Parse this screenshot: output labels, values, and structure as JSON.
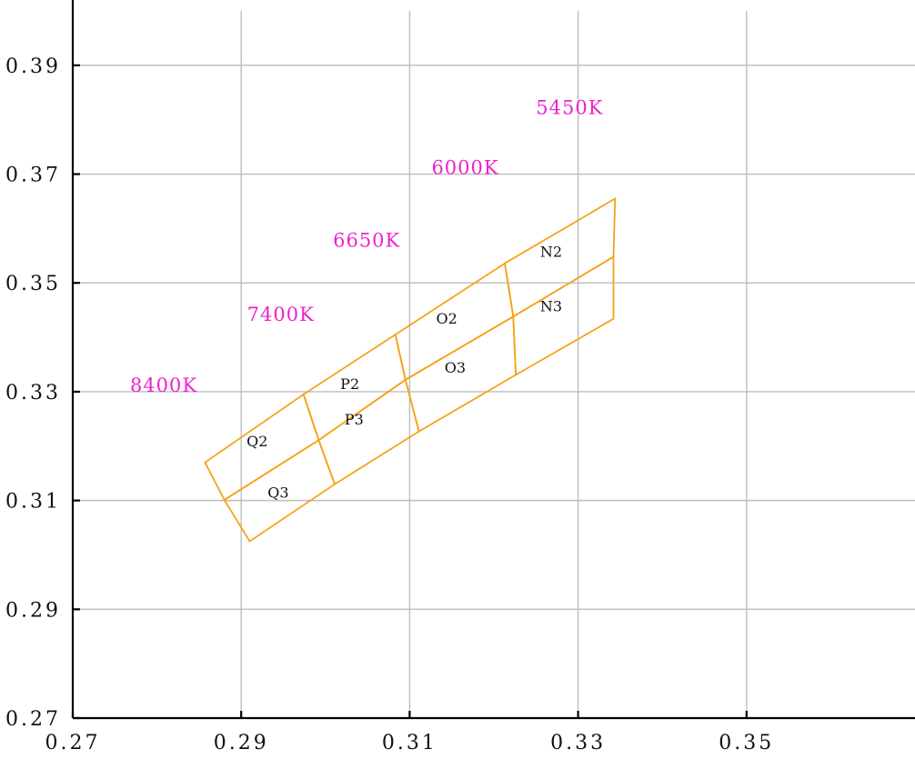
{
  "chart_data": {
    "type": "scatter",
    "title": "",
    "xlabel": "",
    "ylabel": "",
    "xlim": [
      0.27,
      0.37
    ],
    "ylim": [
      0.27,
      0.4
    ],
    "grid": true,
    "x_ticks": [
      "0.27",
      "0.29",
      "0.31",
      "0.33",
      "0.35"
    ],
    "x_tick_values": [
      0.27,
      0.29,
      0.31,
      0.33,
      0.35
    ],
    "y_ticks": [
      "0.27",
      "0.29",
      "0.31",
      "0.33",
      "0.35",
      "0.37",
      "0.39"
    ],
    "y_tick_values": [
      0.27,
      0.29,
      0.31,
      0.33,
      0.35,
      0.37,
      0.39
    ],
    "cct_labels": [
      {
        "text": "5450K",
        "x": 0.329,
        "y": 0.381
      },
      {
        "text": "6000K",
        "x": 0.3166,
        "y": 0.37
      },
      {
        "text": "6650K",
        "x": 0.3049,
        "y": 0.3566
      },
      {
        "text": "7400K",
        "x": 0.2947,
        "y": 0.343
      },
      {
        "text": "8400K",
        "x": 0.2808,
        "y": 0.33
      }
    ],
    "bins": [
      {
        "name": "N2",
        "label_pos": [
          0.3268,
          0.3548
        ],
        "corners": [
          [
            0.3213,
            0.3536
          ],
          [
            0.3344,
            0.3655
          ],
          [
            0.3342,
            0.3548
          ],
          [
            0.3223,
            0.3438
          ]
        ]
      },
      {
        "name": "N3",
        "label_pos": [
          0.3268,
          0.3448
        ],
        "corners": [
          [
            0.3223,
            0.3438
          ],
          [
            0.3342,
            0.3548
          ],
          [
            0.3342,
            0.3434
          ],
          [
            0.3226,
            0.3331
          ]
        ]
      },
      {
        "name": "O2",
        "label_pos": [
          0.3144,
          0.3425
        ],
        "corners": [
          [
            0.3083,
            0.3405
          ],
          [
            0.3213,
            0.3536
          ],
          [
            0.3223,
            0.3438
          ],
          [
            0.3095,
            0.3322
          ]
        ]
      },
      {
        "name": "O3",
        "label_pos": [
          0.3154,
          0.3335
        ],
        "corners": [
          [
            0.3095,
            0.3322
          ],
          [
            0.3223,
            0.3438
          ],
          [
            0.3226,
            0.3331
          ],
          [
            0.3111,
            0.3227
          ]
        ]
      },
      {
        "name": "P2",
        "label_pos": [
          0.3029,
          0.3305
        ],
        "corners": [
          [
            0.2974,
            0.3295
          ],
          [
            0.3083,
            0.3405
          ],
          [
            0.3095,
            0.3322
          ],
          [
            0.2992,
            0.3211
          ]
        ]
      },
      {
        "name": "P3",
        "label_pos": [
          0.3034,
          0.324
        ],
        "corners": [
          [
            0.2992,
            0.3211
          ],
          [
            0.3095,
            0.3322
          ],
          [
            0.3111,
            0.3227
          ],
          [
            0.3011,
            0.313
          ]
        ]
      },
      {
        "name": "Q2",
        "label_pos": [
          0.2919,
          0.32
        ],
        "corners": [
          [
            0.2857,
            0.317
          ],
          [
            0.2974,
            0.3295
          ],
          [
            0.2992,
            0.3211
          ],
          [
            0.288,
            0.3101
          ]
        ]
      },
      {
        "name": "Q3",
        "label_pos": [
          0.2944,
          0.3105
        ],
        "corners": [
          [
            0.288,
            0.3101
          ],
          [
            0.2992,
            0.3211
          ],
          [
            0.3011,
            0.313
          ],
          [
            0.291,
            0.3025
          ]
        ]
      }
    ],
    "colors": {
      "bins": "#f5a31a",
      "cct": "#ee22cc",
      "grid": "#bdbdbd",
      "axis": "#000000"
    }
  }
}
